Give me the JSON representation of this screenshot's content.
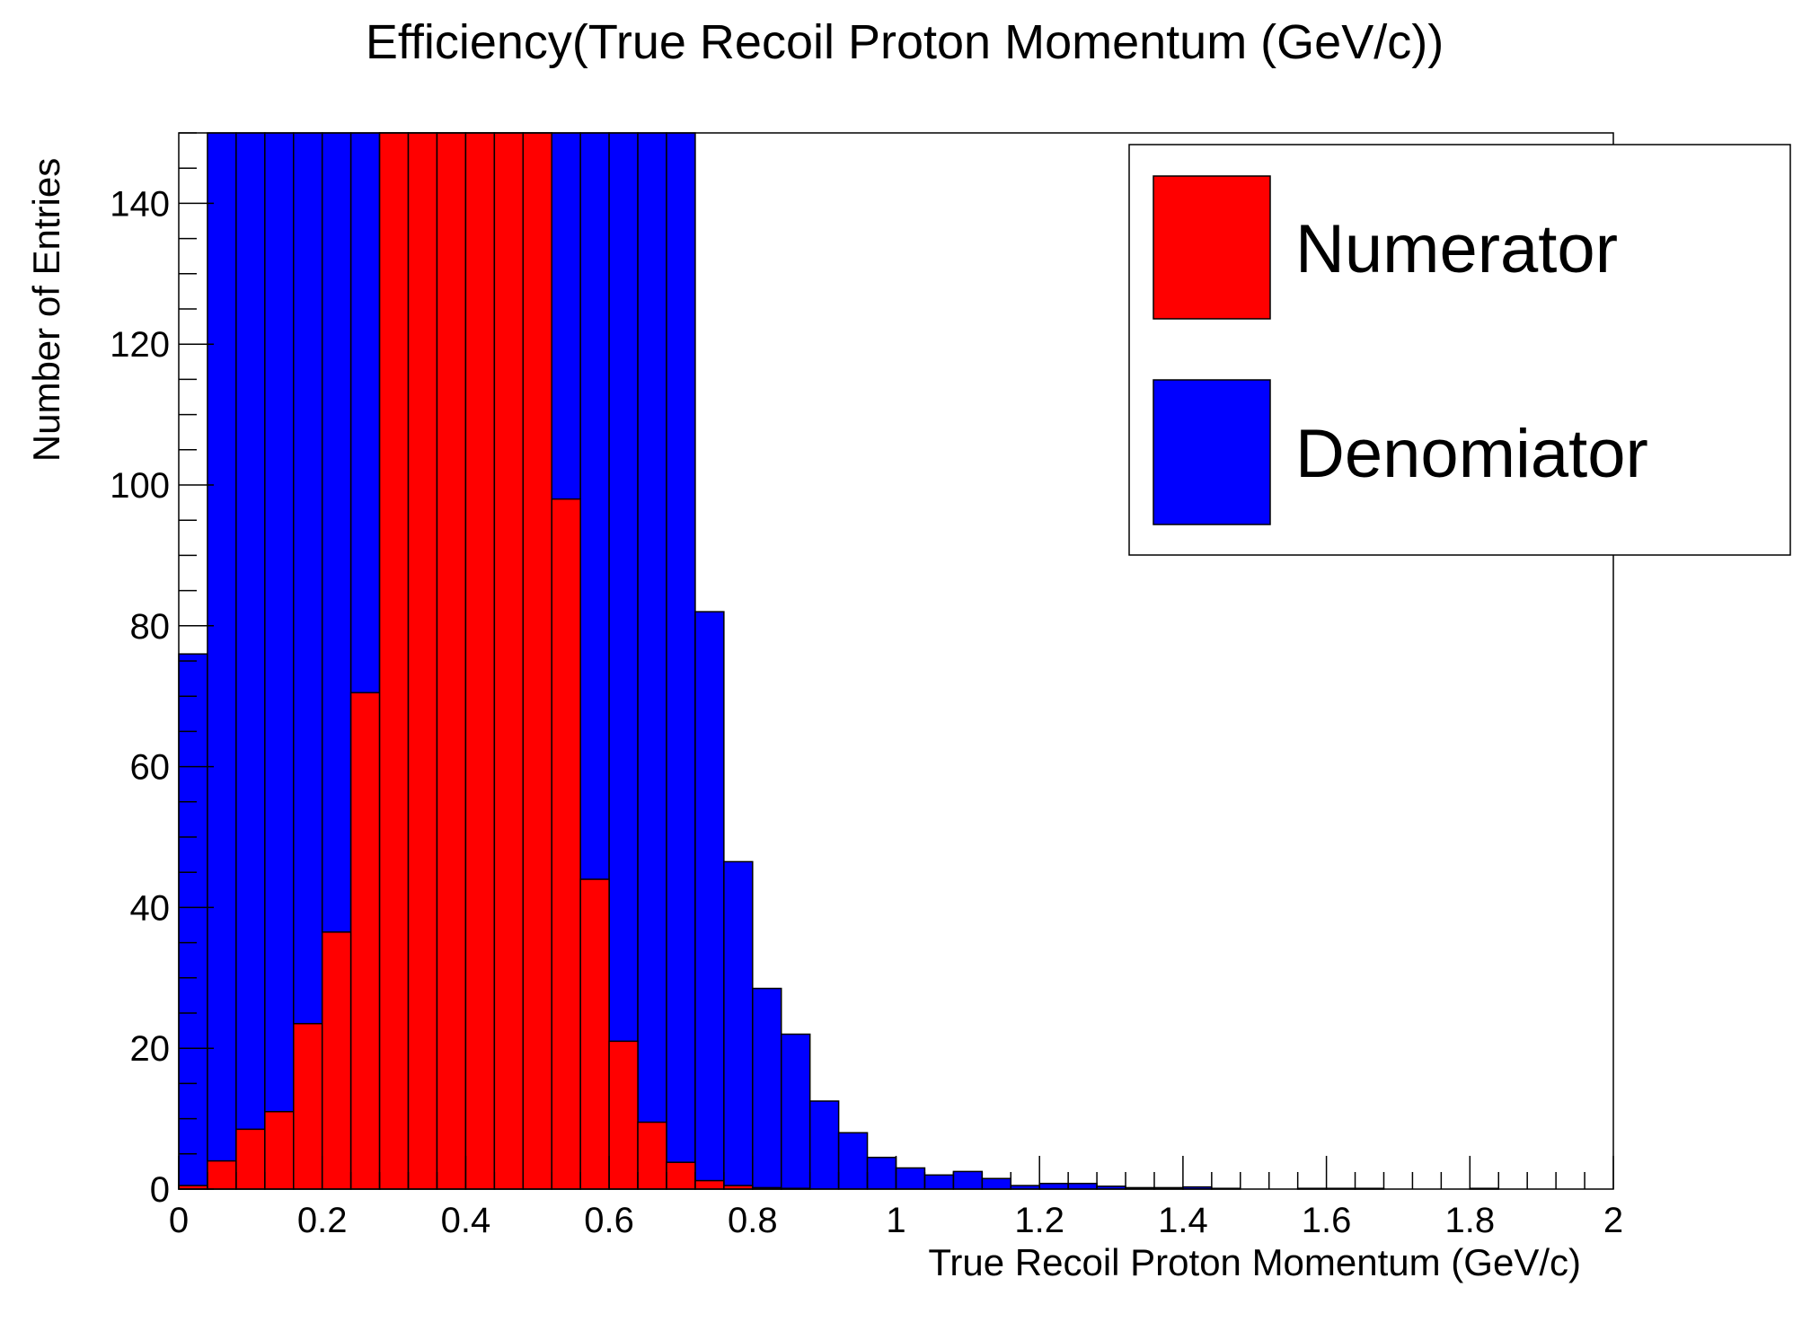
{
  "chart_data": {
    "type": "bar",
    "title": "Efficiency(True Recoil Proton Momentum (GeV/c))",
    "xlabel": "True Recoil Proton Momentum (GeV/c)",
    "ylabel": "Number of Entries",
    "xlim": [
      0,
      2
    ],
    "ylim": [
      0,
      150
    ],
    "x_ticks": [
      "0",
      "0.2",
      "0.4",
      "0.6",
      "0.8",
      "1",
      "1.2",
      "1.4",
      "1.6",
      "1.8",
      "2"
    ],
    "y_ticks": [
      "0",
      "20",
      "40",
      "60",
      "80",
      "100",
      "120",
      "140"
    ],
    "bin_width": 0.04,
    "bin_edges_start": 0,
    "legend_position": "top-right",
    "series": [
      {
        "name": "Denomiator",
        "color": "#0000ff",
        "values": [
          76,
          150,
          150,
          150,
          150,
          150,
          150,
          150,
          150,
          150,
          150,
          150,
          150,
          150,
          150,
          150,
          150,
          150,
          82,
          46.5,
          28.5,
          22,
          12.5,
          8,
          4.5,
          3,
          2,
          2.5,
          1.5,
          0.5,
          0.8,
          0.8,
          0.4,
          0.2,
          0.2,
          0.3,
          0.1,
          0,
          0,
          0.1,
          0.1,
          0.1,
          0,
          0,
          0,
          0.1,
          0,
          0,
          0,
          0
        ]
      },
      {
        "name": "Numerator",
        "color": "#ff0000",
        "values": [
          0.5,
          4,
          8.5,
          11,
          23.5,
          36.5,
          70.5,
          150,
          150,
          150,
          150,
          150,
          150,
          98,
          44,
          21,
          9.5,
          3.8,
          1.2,
          0.5,
          0.2,
          0.1,
          0,
          0,
          0,
          0,
          0,
          0,
          0,
          0,
          0,
          0,
          0,
          0,
          0,
          0,
          0,
          0,
          0,
          0,
          0,
          0,
          0,
          0,
          0,
          0,
          0,
          0,
          0,
          0
        ]
      }
    ]
  }
}
